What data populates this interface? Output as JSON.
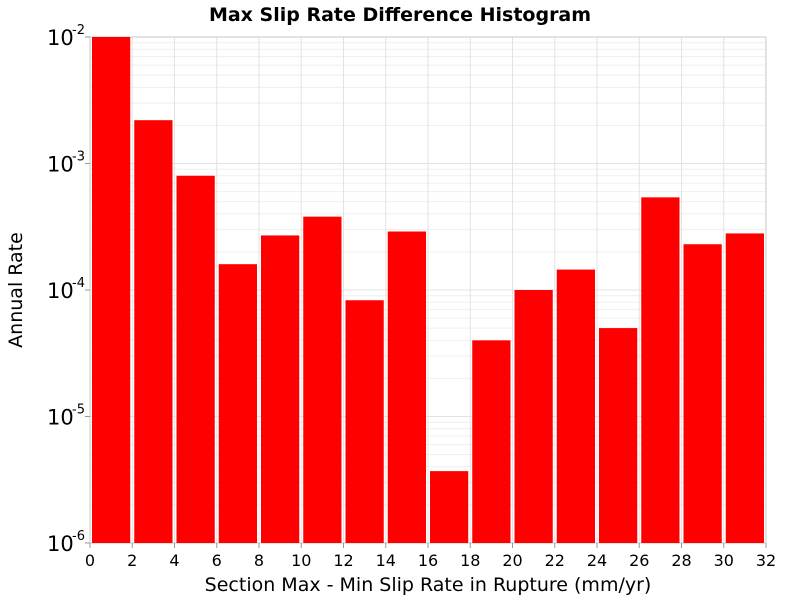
{
  "chart_data": {
    "type": "bar",
    "title": "Max Slip Rate Difference Histogram",
    "xlabel": "Section Max - Min Slip Rate in Rupture (mm/yr)",
    "ylabel": "Annual Rate",
    "x_scale": "linear",
    "y_scale": "log",
    "xlim": [
      0,
      32
    ],
    "ylim": [
      1e-06,
      0.01
    ],
    "x_ticks": [
      "0",
      "2",
      "4",
      "6",
      "8",
      "10",
      "12",
      "14",
      "16",
      "18",
      "20",
      "22",
      "24",
      "26",
      "28",
      "30",
      "32"
    ],
    "y_ticks": [
      {
        "base": "10",
        "exp": "-6",
        "value": 1e-06
      },
      {
        "base": "10",
        "exp": "-5",
        "value": 1e-05
      },
      {
        "base": "10",
        "exp": "-4",
        "value": 0.0001
      },
      {
        "base": "10",
        "exp": "-3",
        "value": 0.001
      },
      {
        "base": "10",
        "exp": "-2",
        "value": 0.01
      }
    ],
    "bin_width": 2,
    "bin_starts": [
      0,
      2,
      4,
      6,
      8,
      10,
      12,
      14,
      16,
      18,
      20,
      22,
      24,
      26,
      28,
      30
    ],
    "values": [
      0.01,
      0.0022,
      0.0008,
      0.00016,
      0.00027,
      0.00038,
      8.3e-05,
      0.00029,
      3.7e-06,
      4e-05,
      0.0001,
      0.000145,
      5e-05,
      0.00054,
      0.00023,
      0.00028
    ],
    "bar_color": "#ff0000",
    "grid": true,
    "legend": "none"
  }
}
